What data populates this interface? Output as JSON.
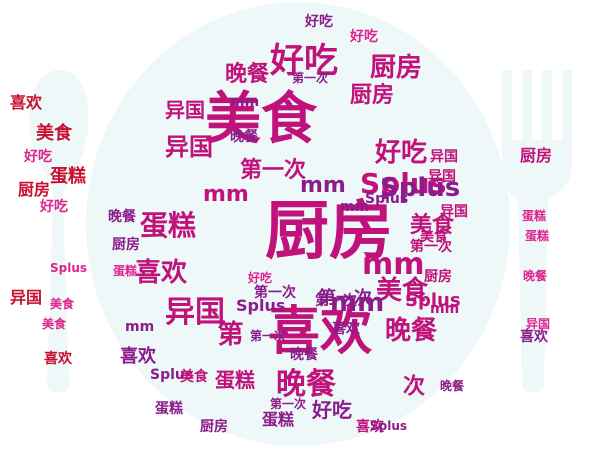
{
  "palette": {
    "magenta": "#c0127a",
    "pink": "#e0248f",
    "red": "#c8102e",
    "purple": "#8b1c8b",
    "plate": "#eef8f8"
  },
  "shapes": [
    "plate",
    "spoon",
    "fork"
  ],
  "words": [
    "厨房",
    "美食",
    "喜欢",
    "好吃",
    "晚餐",
    "异国",
    "蛋糕",
    "mm",
    "Splus",
    "第一次",
    "第",
    "次",
    "厨房",
    "美食",
    "喜欢",
    "好吃",
    "晚餐",
    "异国",
    "蛋糕",
    "mm",
    "Splus",
    "第一次",
    "厨房",
    "美食",
    "喜欢",
    "好吃",
    "晚餐",
    "异国",
    "蛋糕",
    "mm",
    "Splus",
    "第一次",
    "厨房",
    "美食",
    "喜欢",
    "好吃",
    "晚餐",
    "异国",
    "蛋糕",
    "mm",
    "Splus",
    "第一次",
    "厨房",
    "美食",
    "喜欢",
    "好吃",
    "晚餐",
    "异国",
    "蛋糕",
    "mm",
    "Splus",
    "第一次",
    "厨房",
    "美食",
    "喜欢",
    "好吃",
    "晚餐",
    "异国",
    "蛋糕",
    "mm",
    "Splus",
    "第一次",
    "厨房",
    "美食",
    "喜欢",
    "好吃",
    "晚餐",
    "异国",
    "蛋糕",
    "mm",
    "Splus",
    "第一次",
    "美食",
    "喜欢",
    "厨房",
    "好吃",
    "异国",
    "蛋糕",
    "晚餐",
    "mm",
    "第一次",
    "Splus"
  ]
}
